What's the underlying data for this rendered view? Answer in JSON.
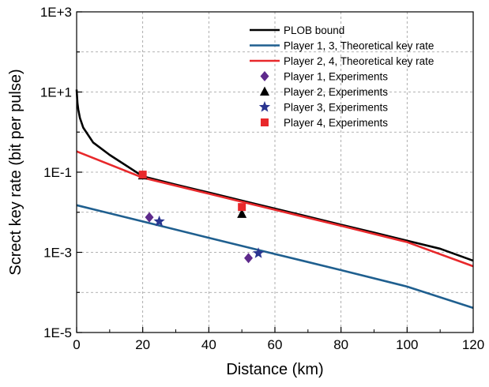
{
  "chart_data": {
    "type": "line",
    "xlabel": "Distance (km)",
    "ylabel": "Screct key rate (bit per pulse)",
    "xlim": [
      0,
      120
    ],
    "ylim": [
      1e-05,
      1000
    ],
    "yscale": "log",
    "grid": true,
    "legend_position": "top-right",
    "x_ticks": [
      "0",
      "20",
      "40",
      "60",
      "80",
      "100",
      "120"
    ],
    "y_ticks": [
      "1E-5",
      "1E-3",
      "1E-1",
      "1E+1",
      "1E+3"
    ],
    "series": [
      {
        "name": "PLOB bound",
        "kind": "line",
        "color": "#000000",
        "x": [
          0,
          0.25,
          0.5,
          1,
          2,
          5,
          10,
          20,
          30,
          40,
          50,
          60,
          70,
          80,
          90,
          100,
          110,
          120
        ],
        "y": [
          11.5,
          5.28,
          3.65,
          2.25,
          1.29,
          0.55,
          0.27,
          0.079,
          0.049,
          0.031,
          0.0195,
          0.0123,
          0.0078,
          0.0049,
          0.0031,
          0.00195,
          0.00123,
          0.00062
        ]
      },
      {
        "name": "Player 1, 3, Theoretical key rate",
        "kind": "line",
        "color": "#1f5f8f",
        "x": [
          0,
          20,
          40,
          60,
          80,
          100,
          120
        ],
        "y": [
          0.015,
          0.0059,
          0.0023,
          0.00091,
          0.00036,
          0.00014,
          4.1e-05
        ]
      },
      {
        "name": "Player 2, 4, Theoretical key rate",
        "kind": "line",
        "color": "#e8282b",
        "x": [
          0,
          20,
          40,
          60,
          80,
          100,
          120
        ],
        "y": [
          0.33,
          0.073,
          0.029,
          0.0115,
          0.0046,
          0.0018,
          0.00045
        ]
      },
      {
        "name": "Player 1, Experiments",
        "kind": "marker",
        "marker": "diamond",
        "color": "#5e2a8c",
        "x": [
          22,
          52
        ],
        "y": [
          0.0075,
          0.00072
        ]
      },
      {
        "name": "Player 2, Experiments",
        "kind": "marker",
        "marker": "triangle",
        "color": "#000000",
        "x": [
          20,
          50
        ],
        "y": [
          0.083,
          0.0091
        ]
      },
      {
        "name": "Player 3, Experiments",
        "kind": "marker",
        "marker": "star",
        "color": "#2a3590",
        "x": [
          25,
          55
        ],
        "y": [
          0.0059,
          0.00095
        ]
      },
      {
        "name": "Player 4, Experiments",
        "kind": "marker",
        "marker": "square",
        "color": "#e8282b",
        "x": [
          20,
          50
        ],
        "y": [
          0.087,
          0.0135
        ]
      }
    ]
  }
}
